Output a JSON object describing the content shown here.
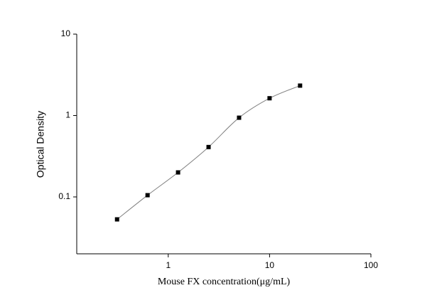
{
  "chart_data": {
    "type": "scatter",
    "x_label": "Mouse FX  concentration(μg/mL)",
    "y_label": "Optical Density",
    "x": [
      0.3125,
      0.625,
      1.25,
      2.5,
      5,
      10,
      20
    ],
    "series": [
      {
        "color": "#000000",
        "values": [
          0.053,
          0.105,
          0.2,
          0.41,
          0.94,
          1.63,
          2.33
        ]
      }
    ],
    "curve_color": "#808080",
    "x_log": true,
    "y_log": true,
    "xlim": [
      0.125,
      100
    ],
    "ylim": [
      0.02,
      10
    ],
    "xticks": [
      1,
      10,
      100
    ],
    "yticks": [
      0.1,
      1,
      10
    ]
  }
}
